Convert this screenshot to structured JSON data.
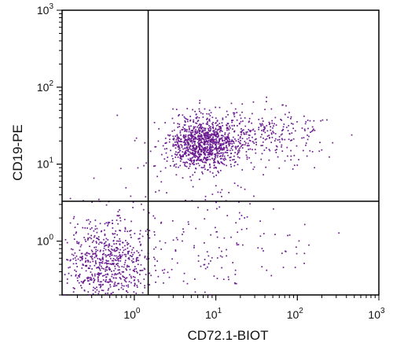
{
  "chart_data": {
    "type": "scatter",
    "title": "",
    "xlabel": "CD72.1-BIOT",
    "ylabel": "CD19-PE",
    "x_scale": "log",
    "y_scale": "log",
    "xlim": [
      0.13,
      1000
    ],
    "ylim": [
      0.2,
      1000
    ],
    "x_ticks": [
      {
        "value": 1,
        "base": "10",
        "exp": "0"
      },
      {
        "value": 10,
        "base": "10",
        "exp": "1"
      },
      {
        "value": 100,
        "base": "10",
        "exp": "2"
      },
      {
        "value": 1000,
        "base": "10",
        "exp": "3"
      }
    ],
    "y_ticks": [
      {
        "value": 1,
        "base": "10",
        "exp": "0"
      },
      {
        "value": 10,
        "base": "10",
        "exp": "1"
      },
      {
        "value": 100,
        "base": "10",
        "exp": "2"
      },
      {
        "value": 1000,
        "base": "10",
        "exp": "3"
      }
    ],
    "quadrant_gates": {
      "x": 1.48,
      "y": 3.3
    },
    "grid": false,
    "point_color": "#6a1a8f",
    "clusters": [
      {
        "center": [
          0.48,
          0.52
        ],
        "spread": [
          0.26,
          0.3
        ],
        "count": 700
      },
      {
        "center": [
          7.0,
          19.0
        ],
        "spread": [
          0.2,
          0.17
        ],
        "count": 950
      },
      {
        "center": [
          32.0,
          25.0
        ],
        "spread": [
          0.4,
          0.18
        ],
        "count": 320
      },
      {
        "center": [
          10.0,
          0.75
        ],
        "spread": [
          0.5,
          0.45
        ],
        "count": 170
      },
      {
        "center": [
          4.0,
          8.0
        ],
        "spread": [
          0.6,
          0.45
        ],
        "count": 60
      }
    ]
  }
}
